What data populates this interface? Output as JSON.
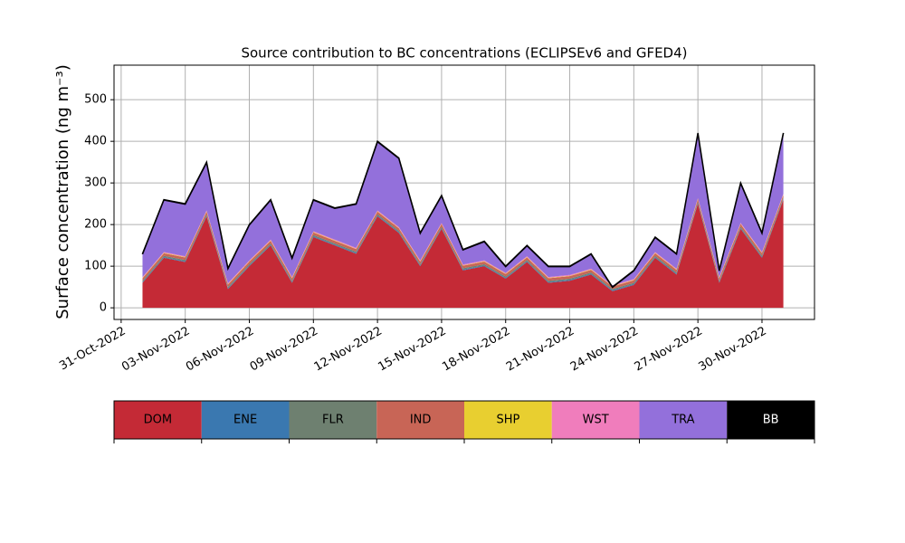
{
  "chart_data": {
    "type": "stacked-area",
    "title": "Source contribution to BC concentrations (ECLIPSEv6 and GFED4)",
    "ylabel": "Surface concentration (ng m⁻³)",
    "x": [
      "2022-11-01",
      "2022-11-02",
      "2022-11-03",
      "2022-11-04",
      "2022-11-05",
      "2022-11-06",
      "2022-11-07",
      "2022-11-08",
      "2022-11-09",
      "2022-11-10",
      "2022-11-11",
      "2022-11-12",
      "2022-11-13",
      "2022-11-14",
      "2022-11-15",
      "2022-11-16",
      "2022-11-17",
      "2022-11-18",
      "2022-11-19",
      "2022-11-20",
      "2022-11-21",
      "2022-11-22",
      "2022-11-23",
      "2022-11-24",
      "2022-11-25",
      "2022-11-26",
      "2022-11-27",
      "2022-11-28",
      "2022-11-29",
      "2022-11-30",
      "2022-12-01"
    ],
    "series": [
      {
        "name": "DOM",
        "color": "#c42a36",
        "values": [
          60,
          120,
          110,
          220,
          45,
          100,
          150,
          60,
          170,
          150,
          130,
          220,
          180,
          100,
          190,
          90,
          100,
          70,
          110,
          60,
          65,
          80,
          40,
          55,
          120,
          80,
          250,
          60,
          190,
          120,
          260
        ]
      },
      {
        "name": "ENE",
        "color": "#3a78b0",
        "values": [
          2,
          2,
          2,
          2,
          2,
          2,
          2,
          2,
          2,
          2,
          2,
          2,
          2,
          2,
          2,
          2,
          2,
          2,
          2,
          2,
          2,
          2,
          2,
          2,
          2,
          2,
          2,
          2,
          2,
          2,
          2
        ]
      },
      {
        "name": "FLR",
        "color": "#6e8070",
        "values": [
          3,
          3,
          3,
          3,
          3,
          3,
          3,
          3,
          3,
          3,
          3,
          3,
          3,
          3,
          3,
          3,
          3,
          3,
          3,
          3,
          3,
          3,
          3,
          3,
          3,
          3,
          3,
          3,
          3,
          3,
          3
        ]
      },
      {
        "name": "IND",
        "color": "#c86556",
        "values": [
          6,
          6,
          6,
          6,
          6,
          6,
          6,
          6,
          6,
          6,
          6,
          6,
          6,
          6,
          6,
          6,
          6,
          6,
          6,
          6,
          6,
          6,
          6,
          6,
          6,
          6,
          6,
          6,
          6,
          6,
          6
        ]
      },
      {
        "name": "SHP",
        "color": "#e8cf30",
        "values": [
          1,
          1,
          1,
          1,
          1,
          1,
          1,
          1,
          1,
          1,
          1,
          1,
          1,
          1,
          1,
          1,
          1,
          1,
          1,
          1,
          1,
          1,
          1,
          1,
          1,
          1,
          1,
          1,
          1,
          1,
          1
        ]
      },
      {
        "name": "WST",
        "color": "#f07dbc",
        "values": [
          2,
          2,
          2,
          2,
          2,
          2,
          2,
          2,
          2,
          2,
          2,
          2,
          2,
          2,
          2,
          2,
          2,
          2,
          2,
          2,
          2,
          2,
          2,
          2,
          2,
          2,
          2,
          2,
          2,
          2,
          2
        ]
      },
      {
        "name": "TRA",
        "color": "#9370db",
        "values": [
          55,
          125,
          125,
          115,
          35,
          85,
          95,
          45,
          75,
          75,
          105,
          165,
          165,
          65,
          65,
          35,
          45,
          15,
          25,
          25,
          20,
          35,
          -5,
          20,
          35,
          35,
          155,
          15,
          95,
          45,
          145
        ]
      },
      {
        "name": "BB",
        "color": "#000000",
        "values": [
          1,
          1,
          1,
          1,
          1,
          1,
          1,
          1,
          1,
          1,
          1,
          1,
          1,
          1,
          1,
          1,
          1,
          1,
          1,
          1,
          1,
          1,
          1,
          1,
          1,
          1,
          1,
          1,
          1,
          1,
          1
        ]
      }
    ],
    "xlim": [
      "2022-10-30T16:00",
      "2022-12-02T11:00"
    ],
    "xticks": [
      {
        "value": "2022-10-31",
        "label": "31-Oct-2022"
      },
      {
        "value": "2022-11-03",
        "label": "03-Nov-2022"
      },
      {
        "value": "2022-11-06",
        "label": "06-Nov-2022"
      },
      {
        "value": "2022-11-09",
        "label": "09-Nov-2022"
      },
      {
        "value": "2022-11-12",
        "label": "12-Nov-2022"
      },
      {
        "value": "2022-11-15",
        "label": "15-Nov-2022"
      },
      {
        "value": "2022-11-18",
        "label": "18-Nov-2022"
      },
      {
        "value": "2022-11-21",
        "label": "21-Nov-2022"
      },
      {
        "value": "2022-11-24",
        "label": "24-Nov-2022"
      },
      {
        "value": "2022-11-27",
        "label": "27-Nov-2022"
      },
      {
        "value": "2022-11-30",
        "label": "30-Nov-2022"
      }
    ],
    "ylim": [
      -28,
      583
    ],
    "yticks": [
      0,
      100,
      200,
      300,
      400,
      500
    ],
    "grid": true
  }
}
